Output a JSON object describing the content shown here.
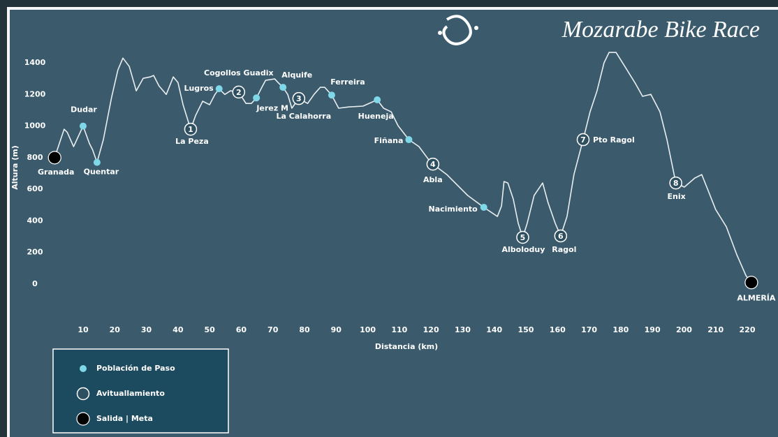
{
  "chart_data": {
    "type": "line",
    "title": "Mozarabe Bike Race",
    "xlabel": "Distancia (km)",
    "ylabel": "Altura (m)",
    "color": "#e9eef1",
    "xlim": [
      0,
      220
    ],
    "ylim": [
      0,
      1400
    ],
    "xticks": [
      10,
      20,
      30,
      40,
      50,
      60,
      70,
      80,
      90,
      100,
      110,
      120,
      130,
      140,
      150,
      160,
      170,
      180,
      190,
      200,
      210,
      220
    ],
    "yticks": [
      0,
      200,
      400,
      600,
      800,
      1000,
      1200,
      1400
    ],
    "x": [
      1,
      4,
      5,
      7,
      10,
      12,
      13,
      14.4,
      16.4,
      19,
      21,
      22.6,
      24.6,
      26.8,
      29,
      31.2,
      32.3,
      34,
      36.3,
      38.5,
      40,
      41.6,
      44,
      45.6,
      47.8,
      50,
      51.7,
      53,
      54.8,
      56.6,
      59.2,
      61.5,
      63.2,
      64.8,
      66.5,
      67.7,
      70.6,
      71.6,
      73.2,
      74.7,
      76,
      78.2,
      81,
      83,
      85,
      86.4,
      88.6,
      90.8,
      94,
      98.5,
      103,
      105,
      107.4,
      109.6,
      113,
      116.2,
      119.5,
      120.6,
      125,
      131.6,
      136.7,
      141,
      142.3,
      143.1,
      144.3,
      146,
      147.6,
      149,
      150.4,
      152.6,
      155.3,
      157,
      159.3,
      161,
      163,
      165.2,
      168.1,
      170.3,
      172.5,
      174.7,
      176.3,
      178.5,
      181.3,
      184.7,
      186.9,
      189.5,
      192.4,
      194.6,
      197.4,
      200.1,
      203.4,
      205.6,
      207.8,
      210,
      213.4,
      216.7,
      219.6,
      221.3
    ],
    "values": [
      800,
      980,
      960,
      870,
      1000,
      890,
      850,
      770,
      914,
      1180,
      1355,
      1430,
      1377,
      1223,
      1302,
      1311,
      1320,
      1254,
      1200,
      1311,
      1276,
      1135,
      980,
      1068,
      1157,
      1135,
      1200,
      1236,
      1200,
      1223,
      1215,
      1143,
      1143,
      1178,
      1245,
      1289,
      1298,
      1276,
      1245,
      1200,
      1113,
      1174,
      1143,
      1200,
      1245,
      1245,
      1196,
      1113,
      1121,
      1126,
      1166,
      1113,
      1090,
      1002,
      914,
      870,
      781,
      759,
      693,
      561,
      486,
      428,
      494,
      649,
      640,
      539,
      384,
      296,
      384,
      561,
      640,
      516,
      384,
      305,
      428,
      693,
      914,
      1090,
      1223,
      1400,
      1466,
      1466,
      1377,
      1267,
      1188,
      1201,
      1090,
      914,
      640,
      614,
      671,
      693,
      583,
      472,
      362,
      185,
      53,
      10
    ],
    "markers": [
      {
        "x": 1,
        "y": 800,
        "label": "Granada",
        "kind": "salida"
      },
      {
        "x": 10,
        "y": 1000,
        "label": "Dudar",
        "kind": "poblacion"
      },
      {
        "x": 14.4,
        "y": 770,
        "label": "Quentar",
        "kind": "poblacion"
      },
      {
        "x": 53,
        "y": 1236,
        "label": "Lugros",
        "kind": "poblacion"
      },
      {
        "x": 64.8,
        "y": 1178,
        "label": "Jerez M",
        "kind": "poblacion"
      },
      {
        "x": 73.2,
        "y": 1245,
        "label": "Alquife",
        "kind": "poblacion"
      },
      {
        "x": 88.6,
        "y": 1196,
        "label": "Ferreira",
        "kind": "poblacion"
      },
      {
        "x": 103,
        "y": 1166,
        "label": "Hueneja",
        "kind": "poblacion"
      },
      {
        "x": 113,
        "y": 914,
        "label": "Fiñana",
        "kind": "poblacion"
      },
      {
        "x": 136.7,
        "y": 486,
        "label": "Nacimiento",
        "kind": "poblacion"
      },
      {
        "x": 44,
        "y": 980,
        "label": "La Peza",
        "number": "1",
        "kind": "avituallamiento"
      },
      {
        "x": 59.2,
        "y": 1215,
        "label": "Cogollos Guadix",
        "number": "2",
        "kind": "avituallamiento"
      },
      {
        "x": 78.2,
        "y": 1174,
        "label": "La Calahorra",
        "number": "3",
        "kind": "avituallamiento"
      },
      {
        "x": 120.6,
        "y": 759,
        "label": "Abla",
        "number": "4",
        "kind": "avituallamiento"
      },
      {
        "x": 149,
        "y": 296,
        "label": "Alboloduy",
        "number": "5",
        "kind": "avituallamiento"
      },
      {
        "x": 161,
        "y": 305,
        "label": "Ragol",
        "number": "6",
        "kind": "avituallamiento"
      },
      {
        "x": 168.1,
        "y": 914,
        "label": "Pto Ragol",
        "number": "7",
        "kind": "avituallamiento"
      },
      {
        "x": 197.4,
        "y": 640,
        "label": "Enix",
        "number": "8",
        "kind": "avituallamiento"
      },
      {
        "x": 221.3,
        "y": 10,
        "label": "ALMERÍA",
        "kind": "salida"
      }
    ],
    "legend": [
      {
        "label": "Población de Paso",
        "kind": "poblacion"
      },
      {
        "label": "Avituallamiento",
        "kind": "avituallamiento"
      },
      {
        "label": "Salida | Meta",
        "kind": "salida"
      }
    ]
  }
}
